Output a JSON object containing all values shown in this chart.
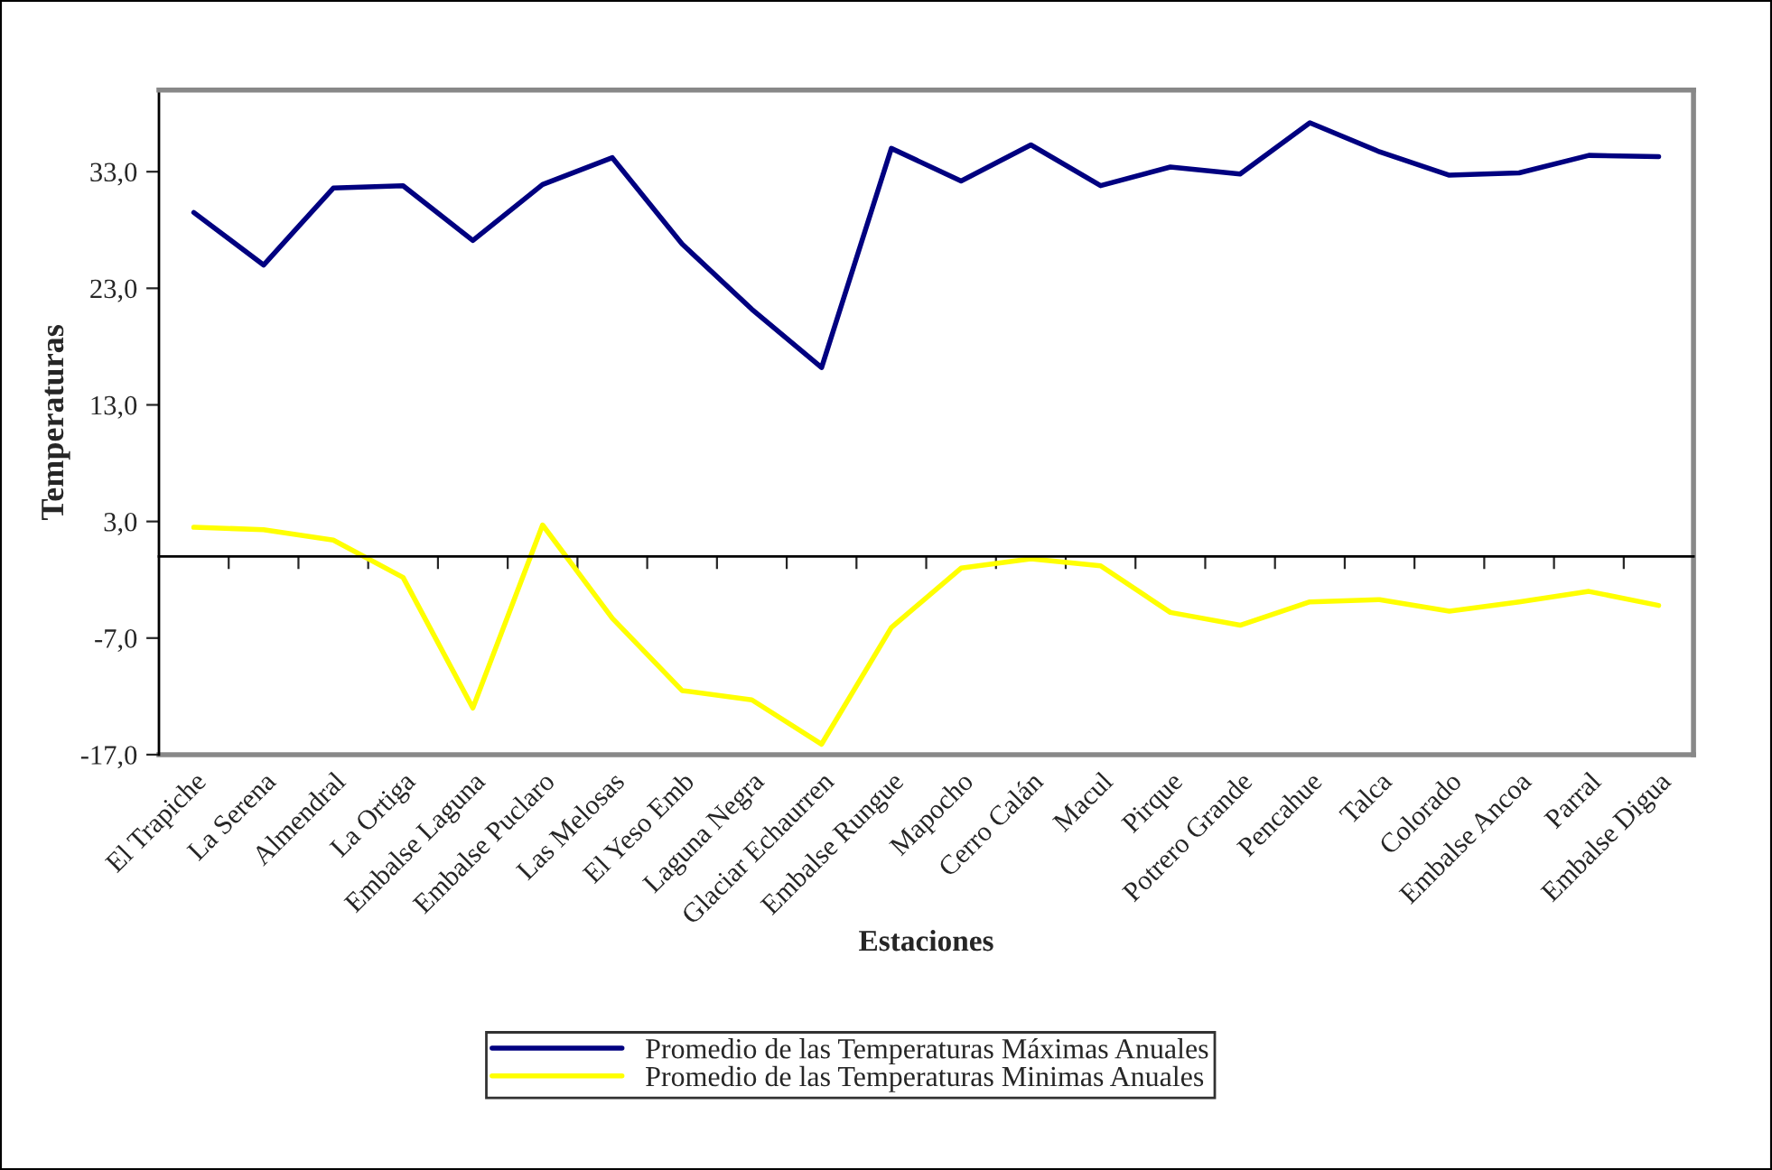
{
  "chart_data": {
    "type": "line",
    "xlabel": "Estaciones",
    "ylabel": "Temperaturas",
    "categories": [
      "El Trapiche",
      "La Serena",
      "Almendral",
      "La Ortiga",
      "Embalse Laguna",
      "Embalse Puclaro",
      "Las Melosas",
      "El Yeso Emb",
      "Laguna Negra",
      "Glaciar Echaurren",
      "Embalse Rungue",
      "Mapocho",
      "Cerro Calán",
      "Macul",
      "Pirque",
      "Potrero Grande",
      "Pencahue",
      "Talca",
      "Colorado",
      "Embalse Ancoa",
      "Parral",
      "Embalse Digua"
    ],
    "series": [
      {
        "name": "Promedio de las Temperaturas Máximas Anuales",
        "color": "#000080",
        "values": [
          29.5,
          25.0,
          31.6,
          31.8,
          27.1,
          31.9,
          34.2,
          26.8,
          21.2,
          16.2,
          35.0,
          32.2,
          35.3,
          31.8,
          33.4,
          32.8,
          37.2,
          34.7,
          32.7,
          32.9,
          34.4,
          34.3
        ]
      },
      {
        "name": "Promedio de las Temperaturas Minimas Anuales",
        "color": "#ffff00",
        "values": [
          2.5,
          2.3,
          1.4,
          -1.8,
          -13.0,
          2.7,
          -5.3,
          -11.5,
          -12.3,
          -16.1,
          -6.1,
          -1.0,
          -0.2,
          -0.8,
          -4.8,
          -5.9,
          -3.9,
          -3.7,
          -4.7,
          -3.9,
          -3.0,
          -4.2
        ]
      }
    ],
    "ylim": [
      -17,
      40
    ],
    "yticks": [
      {
        "value": -17,
        "label": "-17,0"
      },
      {
        "value": -7,
        "label": "-7,0"
      },
      {
        "value": 3,
        "label": "3,0"
      },
      {
        "value": 13,
        "label": "13,0"
      },
      {
        "value": 23,
        "label": "23,0"
      },
      {
        "value": 33,
        "label": "33,0"
      }
    ],
    "grid": false,
    "legend": "bottom",
    "marker": "none",
    "line_style": "solid"
  }
}
